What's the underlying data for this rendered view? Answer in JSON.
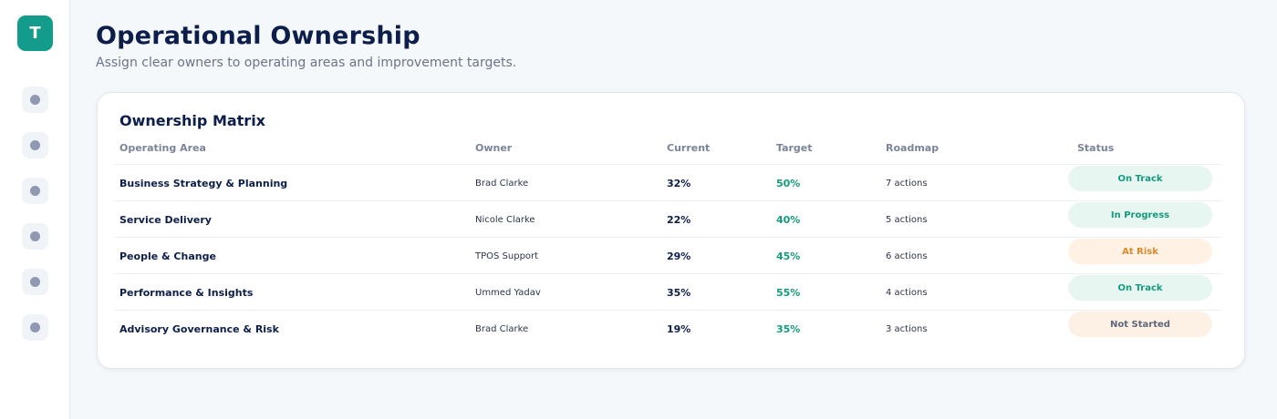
{
  "sidebar": {
    "logo_letter": "T",
    "nav_items": [
      {
        "icon": "dot-icon"
      },
      {
        "icon": "dot-icon"
      },
      {
        "icon": "dot-icon"
      },
      {
        "icon": "dot-icon"
      },
      {
        "icon": "dot-icon"
      },
      {
        "icon": "dot-icon"
      }
    ]
  },
  "header": {
    "title": "Operational Ownership",
    "subtitle": "Assign clear owners to operating areas and improvement targets."
  },
  "matrix": {
    "title": "Ownership Matrix",
    "columns": {
      "area": "Operating Area",
      "owner": "Owner",
      "current": "Current",
      "target": "Target",
      "roadmap": "Roadmap",
      "status": "Status"
    },
    "rows": [
      {
        "area": "Business Strategy & Planning",
        "owner": "Brad Clarke",
        "current": "32%",
        "target": "50%",
        "roadmap": "7 actions",
        "status": "On Track"
      },
      {
        "area": "Service Delivery",
        "owner": "Nicole Clarke",
        "current": "22%",
        "target": "40%",
        "roadmap": "5 actions",
        "status": "In Progress"
      },
      {
        "area": "People & Change",
        "owner": "TPOS Support",
        "current": "29%",
        "target": "45%",
        "roadmap": "6 actions",
        "status": "At Risk"
      },
      {
        "area": "Performance & Insights",
        "owner": "Ummed Yadav",
        "current": "35%",
        "target": "55%",
        "roadmap": "4 actions",
        "status": "On Track"
      },
      {
        "area": "Advisory Governance & Risk",
        "owner": "Brad Clarke",
        "current": "19%",
        "target": "35%",
        "roadmap": "3 actions",
        "status": "Not Started"
      }
    ]
  },
  "colors": {
    "accent": "#139c8c",
    "target_green": "#159a7e",
    "at_risk_orange": "#d98a2c",
    "title_navy": "#0d1e4a"
  }
}
